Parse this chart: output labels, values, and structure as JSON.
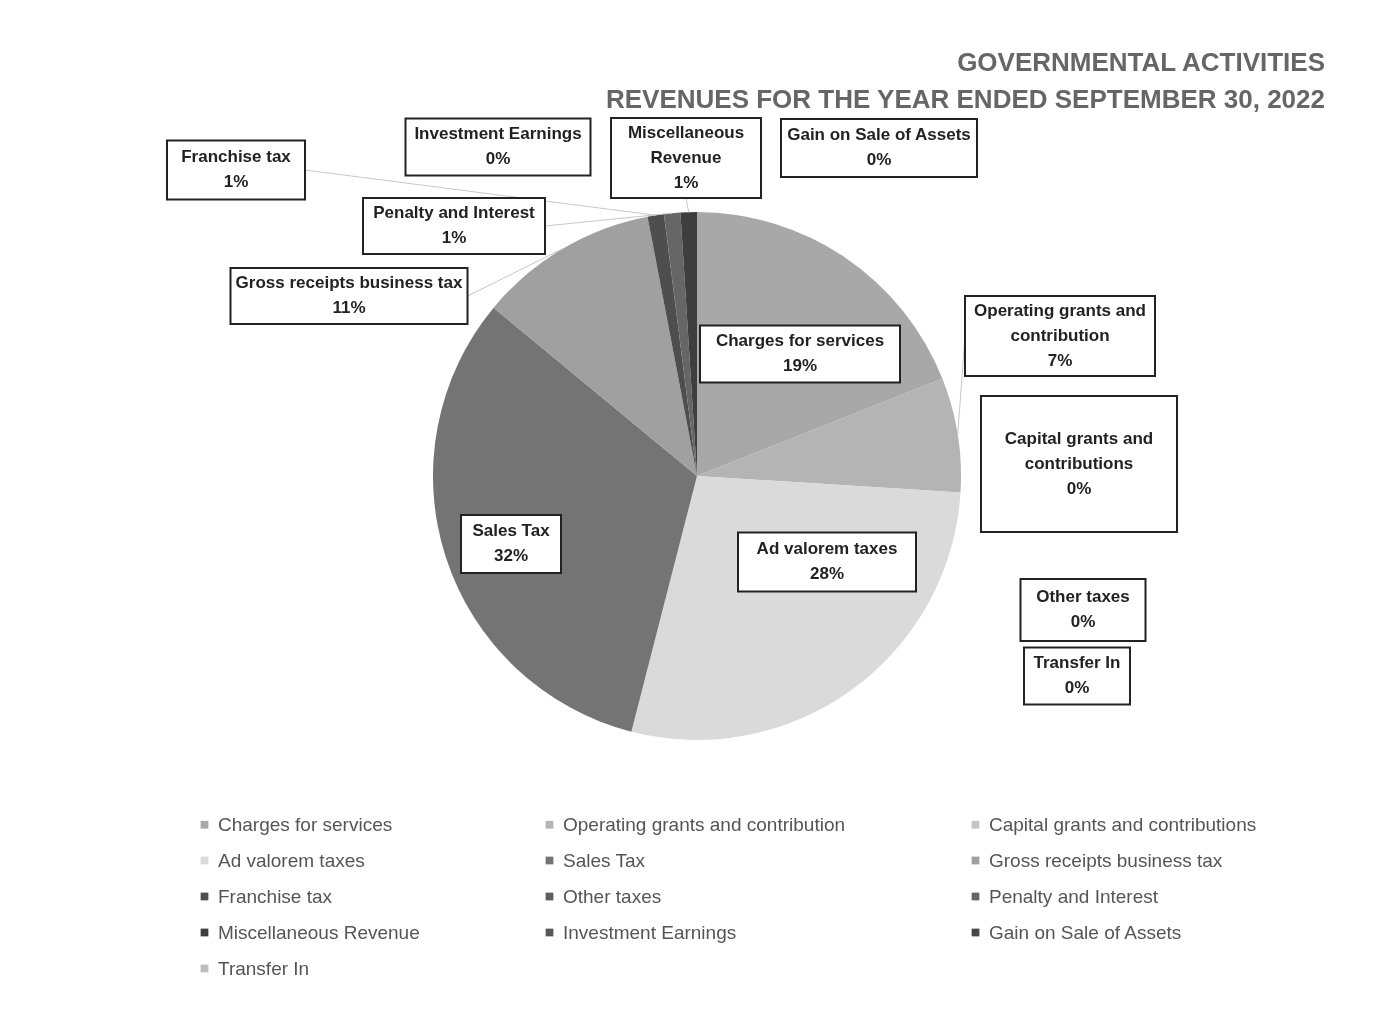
{
  "chart_data": {
    "type": "pie",
    "title": "GOVERNMENTAL ACTIVITIES",
    "subtitle": "REVENUES FOR THE YEAR ENDED SEPTEMBER 30, 2022",
    "categories": [
      "Charges for services",
      "Operating grants and contribution",
      "Capital grants and contributions",
      "Ad valorem taxes",
      "Sales Tax",
      "Gross receipts business tax",
      "Franchise tax",
      "Other taxes",
      "Penalty and Interest",
      "Miscellaneous Revenue",
      "Investment Earnings",
      "Gain on Sale of Assets",
      "Transfer In"
    ],
    "values": [
      19,
      7,
      0,
      28,
      32,
      11,
      1,
      0,
      1,
      1,
      0,
      0,
      0
    ],
    "value_labels": [
      "19%",
      "7%",
      "0%",
      "28%",
      "32%",
      "11%",
      "1%",
      "0%",
      "1%",
      "1%",
      "0%",
      "0%",
      "0%"
    ],
    "colors": [
      "#a8a8a8",
      "#b4b4b4",
      "#c4c4c4",
      "#dadada",
      "#747474",
      "#a0a0a0",
      "#4e4e4e",
      "#5e5e5e",
      "#666666",
      "#3e3e3e",
      "#585858",
      "#464646",
      "#bcbcbc"
    ],
    "legend": "bottom"
  }
}
